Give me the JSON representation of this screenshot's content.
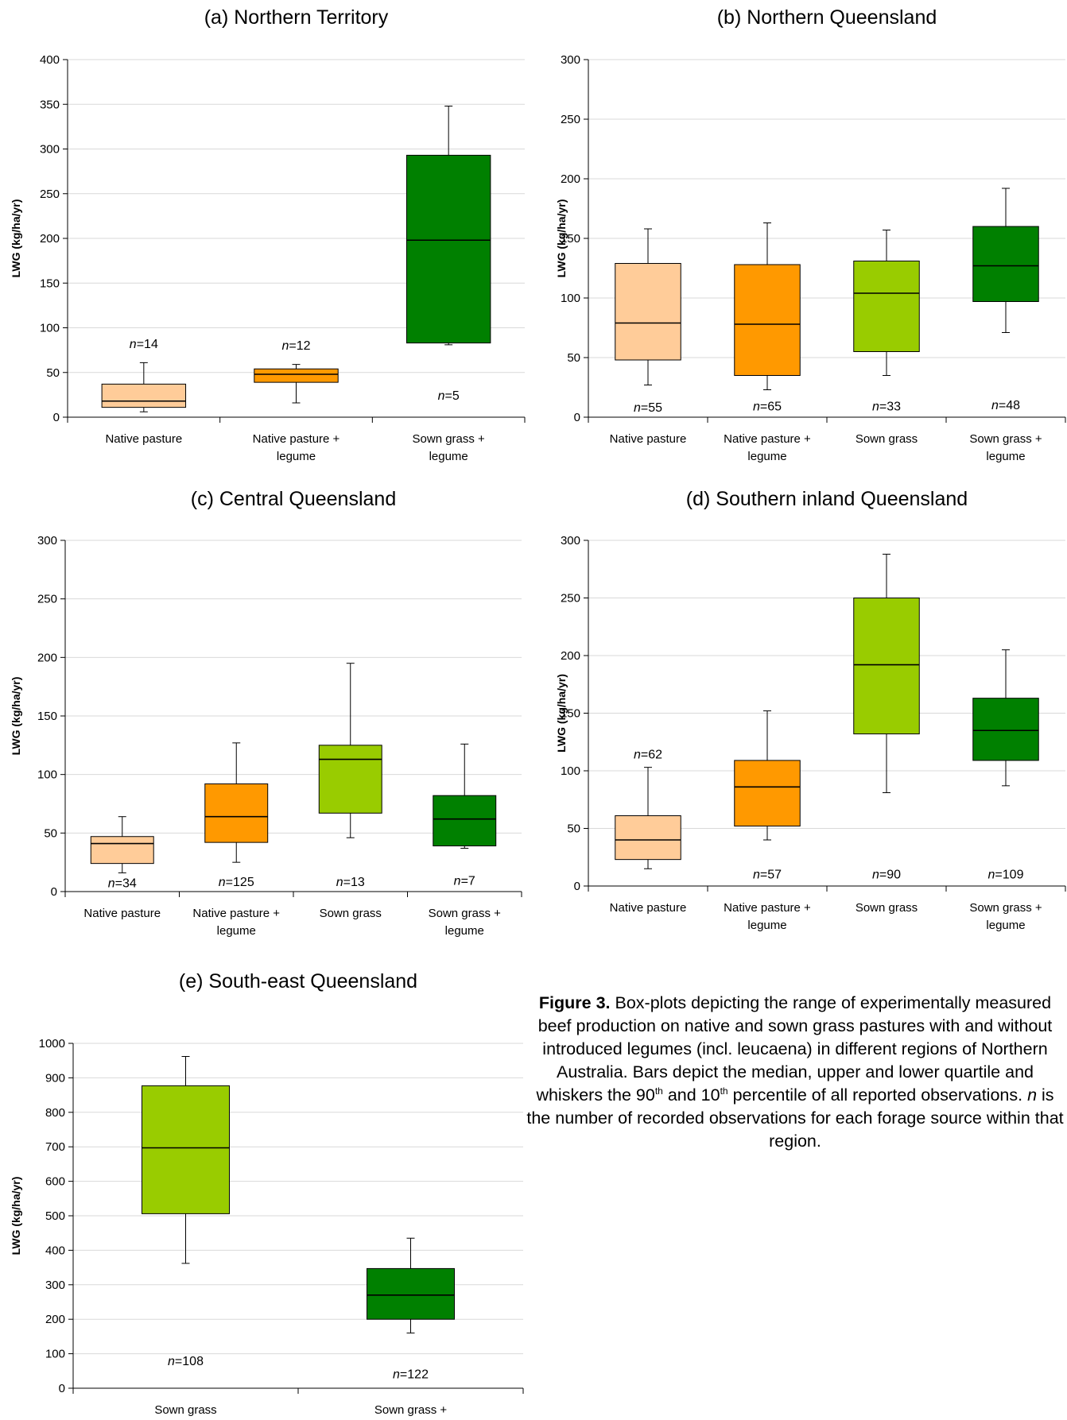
{
  "chart_data": [
    {
      "type": "box",
      "title": "(a) Northern Territory",
      "ylabel": "LWG (kg/ha/yr)",
      "ylim": [
        0,
        400
      ],
      "yticks": [
        0,
        50,
        100,
        150,
        200,
        250,
        300,
        350,
        400
      ],
      "categories": [
        "Native pasture",
        "Native pasture + legume",
        "Sown grass + legume"
      ],
      "boxes": [
        {
          "p10": 6,
          "q1": 11,
          "median": 18,
          "q3": 37,
          "p90": 61,
          "n": "14",
          "n_y": 82,
          "color": "#FFCC99"
        },
        {
          "p10": 16,
          "q1": 39,
          "median": 48,
          "q3": 54,
          "p90": 59,
          "n": "12",
          "n_y": 80,
          "color": "#FF9900"
        },
        {
          "p10": 81,
          "q1": 83,
          "median": 198,
          "q3": 293,
          "p90": 348,
          "n": "5",
          "n_y": 24,
          "color": "#008000"
        }
      ]
    },
    {
      "type": "box",
      "title": "(b) Northern Queensland",
      "ylabel": "LWG (kg/ha/yr)",
      "ylim": [
        0,
        300
      ],
      "yticks": [
        0,
        50,
        100,
        150,
        200,
        250,
        300
      ],
      "categories": [
        "Native pasture",
        "Native pasture + legume",
        "Sown grass",
        "Sown grass + legume"
      ],
      "boxes": [
        {
          "p10": 27,
          "q1": 48,
          "median": 79,
          "q3": 129,
          "p90": 158,
          "n": "55",
          "n_y": 8,
          "color": "#FFCC99"
        },
        {
          "p10": 23,
          "q1": 35,
          "median": 78,
          "q3": 128,
          "p90": 163,
          "n": "65",
          "n_y": 9,
          "color": "#FF9900"
        },
        {
          "p10": 35,
          "q1": 55,
          "median": 104,
          "q3": 131,
          "p90": 157,
          "n": "33",
          "n_y": 9,
          "color": "#99CC00"
        },
        {
          "p10": 71,
          "q1": 97,
          "median": 127,
          "q3": 160,
          "p90": 192,
          "n": "48",
          "n_y": 10,
          "color": "#008000"
        }
      ]
    },
    {
      "type": "box",
      "title": "(c) Central Queensland",
      "ylabel": "LWG (kg/ha/yr)",
      "ylim": [
        0,
        300
      ],
      "yticks": [
        0,
        50,
        100,
        150,
        200,
        250,
        300
      ],
      "categories": [
        "Native pasture",
        "Native pasture + legume",
        "Sown grass",
        "Sown grass + legume"
      ],
      "boxes": [
        {
          "p10": 16,
          "q1": 24,
          "median": 41,
          "q3": 47,
          "p90": 64,
          "n": "34",
          "n_y": 7,
          "color": "#FFCC99"
        },
        {
          "p10": 25,
          "q1": 42,
          "median": 64,
          "q3": 92,
          "p90": 127,
          "n": "125",
          "n_y": 8,
          "color": "#FF9900"
        },
        {
          "p10": 46,
          "q1": 67,
          "median": 113,
          "q3": 125,
          "p90": 195,
          "n": "13",
          "n_y": 8,
          "color": "#99CC00"
        },
        {
          "p10": 37,
          "q1": 39,
          "median": 62,
          "q3": 82,
          "p90": 126,
          "n": "7",
          "n_y": 9,
          "color": "#008000"
        }
      ]
    },
    {
      "type": "box",
      "title": "(d) Southern inland Queensland",
      "ylabel": "LWG (kg/ha/yr)",
      "ylim": [
        0,
        300
      ],
      "yticks": [
        0,
        50,
        100,
        150,
        200,
        250,
        300
      ],
      "categories": [
        "Native pasture",
        "Native pasture + legume",
        "Sown grass",
        "Sown grass + legume"
      ],
      "boxes": [
        {
          "p10": 15,
          "q1": 23,
          "median": 40,
          "q3": 61,
          "p90": 103,
          "n": "62",
          "n_y": 114,
          "color": "#FFCC99"
        },
        {
          "p10": 40,
          "q1": 52,
          "median": 86,
          "q3": 109,
          "p90": 152,
          "n": "57",
          "n_y": 10,
          "color": "#FF9900"
        },
        {
          "p10": 81,
          "q1": 132,
          "median": 192,
          "q3": 250,
          "p90": 288,
          "n": "90",
          "n_y": 10,
          "color": "#99CC00"
        },
        {
          "p10": 87,
          "q1": 109,
          "median": 135,
          "q3": 163,
          "p90": 205,
          "n": "109",
          "n_y": 10,
          "color": "#008000"
        }
      ]
    },
    {
      "type": "box",
      "title": "(e) South-east Queensland",
      "ylabel": "LWG (kg/ha/yr)",
      "ylim": [
        0,
        1000
      ],
      "yticks": [
        0,
        100,
        200,
        300,
        400,
        500,
        600,
        700,
        800,
        900,
        1000
      ],
      "categories": [
        "Sown grass",
        "Sown grass + legume"
      ],
      "boxes": [
        {
          "p10": 362,
          "q1": 506,
          "median": 697,
          "q3": 877,
          "p90": 962,
          "n": "108",
          "n_y": 78,
          "color": "#99CC00"
        },
        {
          "p10": 160,
          "q1": 200,
          "median": 270,
          "q3": 347,
          "p90": 435,
          "n": "122",
          "n_y": 40,
          "color": "#008000"
        }
      ]
    }
  ],
  "caption": {
    "label": "Figure 3.",
    "part1": " Box-plots depicting the range of experimentally measured beef production on native and sown grass pastures with and without introduced legumes (incl. leucaena) in different regions of Northern Australia. Bars depict the median, upper and lower quartile and whiskers the 90",
    "sup1": "th",
    "part2": " and 10",
    "sup2": "th",
    "part3": " percentile of all reported observations. ",
    "n_italic": "n",
    "part4": " is the number of recorded observations for each forage source within that region."
  }
}
